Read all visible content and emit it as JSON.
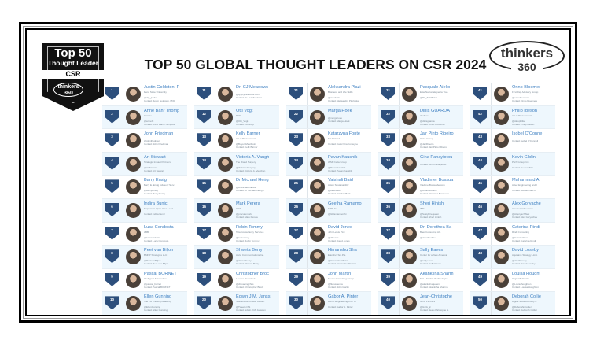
{
  "badge": {
    "top": "Top 50",
    "subtitle": "Thought Leader",
    "category": "CSR",
    "logo_word": "thinkers",
    "logo_num": "360"
  },
  "title": "TOP 50 GLOBAL THOUGHT LEADERS ON CSR 2024",
  "brand": {
    "word": "thinkers",
    "num": "360"
  },
  "colors": {
    "rank_badge": "#2d4f7c",
    "name_link": "#3d7fc1",
    "alt_row": "#eef7fd"
  },
  "leaders": [
    {
      "rank": "1",
      "name": "Justin Goldston, P",
      "org": "Penn State University",
      "handle": "@drjt_justin",
      "contact": "Contact Justin Goldston, PhD"
    },
    {
      "rank": "2",
      "name": "Anne Bahr Thomp",
      "org": "Onwise",
      "handle": "@annebt",
      "contact": "Contact Anne Bahr Thompson"
    },
    {
      "rank": "3",
      "name": "John Friedman",
      "org": "",
      "handle": "@johnfriedman",
      "contact": "Contact John Friedman"
    },
    {
      "rank": "4",
      "name": "Art Stewart",
      "org": "Strategic Impact Partners",
      "handle": "@ArtStewart",
      "contact": "Contact Art Stewart"
    },
    {
      "rank": "5",
      "name": "Barry Ensig",
      "org": "Barry E. Ensig Advisory Serv.",
      "handle": "@BarryEnsig",
      "contact": "Contact Barry Ensig"
    },
    {
      "rank": "6",
      "name": "Indira Bunic",
      "org": "Empowers Ignite Your Lead.",
      "handle": "",
      "contact": "Contact Indira Bunic"
    },
    {
      "rank": "7",
      "name": "Luca Condosta",
      "org": "ABB",
      "handle": "@lucacondosta",
      "contact": "Contact Luca Condosta"
    },
    {
      "rank": "8",
      "name": "Peet van Biljon",
      "org": "BMNP Strategies LLC",
      "handle": "@PeetvanBiljon",
      "contact": "Contact Peet van Biljon"
    },
    {
      "rank": "9",
      "name": "Pascal BORNET",
      "org": "Intelligent Automation",
      "handle": "@pascal_bornet",
      "contact": "Contact Pascal BORNET"
    },
    {
      "rank": "10",
      "name": "Ellen Gunning",
      "org": "The PR Training Academy",
      "handle": "@EllenGunning",
      "contact": "Contact Ellen Gunning"
    },
    {
      "rank": "11",
      "name": "Dr. CJ Meadows",
      "org": "",
      "handle": "@cj@cjmeadows.com",
      "contact": "Contact Dr. CJ Meadows"
    },
    {
      "rank": "12",
      "name": "Otti Vogt",
      "org": "PHS",
      "handle": "@Otti_Vogt",
      "contact": "Contact Otti Vogt"
    },
    {
      "rank": "13",
      "name": "Kelly Barner",
      "org": "Art of Procurement",
      "handle": "@BuyersMeetPoint",
      "contact": "Contact Kelly Barner"
    },
    {
      "rank": "14",
      "name": "Victoria A. Vaugh",
      "org": "The Brand Surgery",
      "handle": "@thebrandsurgery",
      "contact": "Contact Victoria A. Vaughan"
    },
    {
      "rank": "15",
      "name": "Dr Michael Heng",
      "org": "",
      "handle": "@DrMichaelHENG",
      "contact": "Contact Dr Michael Heng P"
    },
    {
      "rank": "16",
      "name": "Mark Perera",
      "org": "Vizibl",
      "handle": "@procuremark",
      "contact": "Contact Mark Perera"
    },
    {
      "rank": "17",
      "name": "Robin Tommy",
      "org": "Tata Consultancy Services",
      "handle": "@robtommy",
      "contact": "Contact Robin Tommy"
    },
    {
      "rank": "18",
      "name": "Shweta Berry",
      "org": "Aerie Communications Ind.",
      "handle": "@shwetaberry",
      "contact": "Contact Shweta Berry"
    },
    {
      "rank": "19",
      "name": "Christopher Broc",
      "org": "Leuden Oi Limited",
      "handle": "@cbroadingchris",
      "contact": "Contact Christopher Brock"
    },
    {
      "rank": "20",
      "name": "Edwin J.M. Janss",
      "org": "Sustainable Growth Associ.",
      "handle": "@TweetenTS",
      "contact": "Contact Edwin J.M. Janssen"
    },
    {
      "rank": "21",
      "name": "Aleksandra Plazi",
      "org": "Business and Life Skills",
      "handle": "@crowlerte",
      "contact": "Contact Aleksandra Plazinska"
    },
    {
      "rank": "22",
      "name": "Marga Hoek",
      "org": "",
      "handle": "@margahoek",
      "contact": "Contact Marga Hoek"
    },
    {
      "rank": "23",
      "name": "Katarzyna Fonte",
      "org": "Epi Finland",
      "handle": "",
      "contact": "Contact Katarzyna Fonteyne"
    },
    {
      "rank": "24",
      "name": "Pavan Kaushik",
      "org": "WSM India Group",
      "handle": "@PavanKaushik",
      "contact": "Contact Pavan Kaushik"
    },
    {
      "rank": "25",
      "name": "Vaishali Baid",
      "org": "Anton Sustainability",
      "handle": "@vaishaliBT",
      "contact": "Contact Vaishali Baid"
    },
    {
      "rank": "26",
      "name": "Geetha Ramamo",
      "org": "KBR, Inc.",
      "handle": "@GRamamoorthi",
      "contact": ""
    },
    {
      "rank": "27",
      "name": "David Jones",
      "org": "John Lewis PLC",
      "handle": "@dlrjones",
      "contact": "Contact David Jones"
    },
    {
      "rank": "28",
      "name": "Himanshu Sha",
      "org": "Elan Inc. Sm.P.E.",
      "handle": "@HimanshuOfficial",
      "contact": "Contact Himanshu Sharma"
    },
    {
      "rank": "29",
      "name": "John Martin",
      "org": "Fluxus Consulting Group L.",
      "handle": "@fluxushence",
      "contact": "Contact John Martin"
    },
    {
      "rank": "30",
      "name": "Gabor A. Pinter",
      "org": "BEXO Engineering Kft. / Ki",
      "handle": "",
      "contact": "Contact Gabor A. Pinter"
    },
    {
      "rank": "31",
      "name": "Pasquale Aiello",
      "org": "Ente Nazionale per la Tras.",
      "handle": "@PA_TwOfficial",
      "contact": ""
    },
    {
      "rank": "32",
      "name": "Dinis GUARDA",
      "org": "ztudium",
      "handle": "@dinisguarda",
      "contact": "Contact Dinis GUARDA"
    },
    {
      "rank": "33",
      "name": "Jair Pinto Ribeiro",
      "org": "Vinke Group",
      "handle": "@JairRibeiro",
      "contact": "Contact Jair Pinto Ribeiro"
    },
    {
      "rank": "34",
      "name": "Gina Panayiotou",
      "org": "",
      "handle": "",
      "contact": "Contact Gina Panayiotou"
    },
    {
      "rank": "35",
      "name": "Vladimer Bossua",
      "org": "VladimerBossuabe.com",
      "handle": "@vladbossuabe",
      "contact": "Contact Vladimer Bossuabe"
    },
    {
      "rank": "36",
      "name": "Sheri Hinish",
      "org": "IBM",
      "handle": "@SustyFirequeen",
      "contact": "Contact Sheri Hinish"
    },
    {
      "rank": "37",
      "name": "Dr. Dorothea Ba",
      "org": "Baer Consulting AG",
      "handle": "@dorotheabaer",
      "contact": ""
    },
    {
      "rank": "38",
      "name": "Sally Eaves",
      "org": "Center for a New America",
      "handle": "@sallyeaves",
      "contact": "Contact Sally Eaves"
    },
    {
      "rank": "39",
      "name": "Akanksha Sharm",
      "org": "STL - Sterlite Technologies",
      "handle": "@akankshaqueens",
      "contact": "Contact Akanksha Sharma"
    },
    {
      "rank": "40",
      "name": "Jean-Christophe",
      "org": "Gvrix Partners",
      "handle": "@Gvrix_jc",
      "contact": "Contact Jean-Christophe G"
    },
    {
      "rank": "41",
      "name": "Onno Bloemer",
      "org": "First Day Advisory Group",
      "handle": "@onnobloemers",
      "contact": "Contact Onno Bloemers"
    },
    {
      "rank": "42",
      "name": "Philip Ideson",
      "org": "Art of Procurement",
      "handle": "@ideophilise",
      "contact": "Contact Philip Ideson"
    },
    {
      "rank": "43",
      "name": "Isobel O'Conne",
      "org": "",
      "handle": "",
      "contact": "Contact Isobel O'Connell"
    },
    {
      "rank": "44",
      "name": "Kevin Giblin",
      "org": "Pitch Group, Inc.",
      "handle": "",
      "contact": "Contact Kevin Giblin"
    },
    {
      "rank": "45",
      "name": "Muhammad A.",
      "org": "Allied Engineering and I",
      "handle": "",
      "contact": "Contact Muhammad A."
    },
    {
      "rank": "46",
      "name": "Alex Goryache",
      "org": "AlexGoryachev.com",
      "handle": "@AlgoryachAlex",
      "contact": "Contact Alex Goryachev"
    },
    {
      "rank": "47",
      "name": "Caterina Rindi",
      "org": "Rindi Consulting",
      "handle": "@CaterinaRindi",
      "contact": "Contact Caterina Rindi"
    },
    {
      "rank": "48",
      "name": "David Loseby",
      "org": "Aquitaine Strategy Limit.",
      "handle": "@davidloseby",
      "contact": "Contact David Loseby"
    },
    {
      "rank": "49",
      "name": "Louisa Hought",
      "org": "Virgin Media O2",
      "handle": "@Louisahoughton",
      "contact": "Contact Louisa Houghton"
    },
    {
      "rank": "50",
      "name": "Deborah Collie",
      "org": "Digital Skills Authority L.",
      "handle": "@DeborahnCollier",
      "contact": "Contact Deborah Collier"
    }
  ]
}
